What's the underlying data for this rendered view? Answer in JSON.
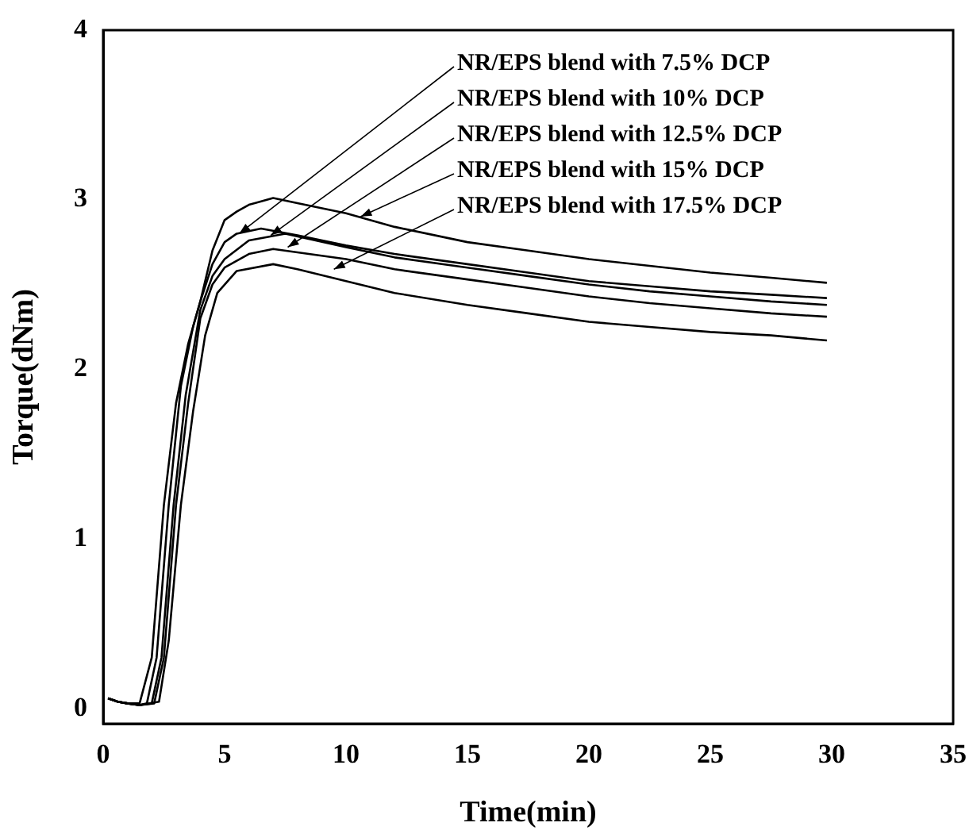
{
  "chart_data": {
    "type": "line",
    "xlabel": "Time(min)",
    "ylabel": "Torque(dNm)",
    "xlim": [
      0,
      35
    ],
    "xticks": [
      0,
      5,
      10,
      15,
      20,
      25,
      30,
      35
    ],
    "ylim": [
      -0.09,
      4
    ],
    "yticks": [
      0,
      1,
      2,
      3,
      4
    ],
    "grid": false,
    "legend": false,
    "marker": "none",
    "line_style": "solid",
    "series": [
      {
        "color": "#000000",
        "x": [
          0.2,
          0.6,
          1,
          1.5,
          1.8,
          2.2,
          2.7,
          3.2,
          3.7,
          4,
          4.5,
          5,
          5.5,
          6.5,
          8,
          10,
          12,
          15,
          17.5,
          20,
          22.5,
          25,
          27.5,
          29.8
        ],
        "values": [
          0.06,
          0.04,
          0.03,
          0.02,
          0.03,
          0.3,
          1.2,
          1.9,
          2.25,
          2.4,
          2.62,
          2.75,
          2.8,
          2.83,
          2.79,
          2.73,
          2.68,
          2.62,
          2.57,
          2.52,
          2.49,
          2.46,
          2.44,
          2.42
        ]
      },
      {
        "color": "#000000",
        "x": [
          0.2,
          0.6,
          1,
          1.5,
          2,
          2.4,
          2.9,
          3.4,
          4,
          4.5,
          5,
          6,
          7.5,
          10,
          12,
          15,
          17.5,
          20,
          22.5,
          25,
          27.5,
          29.8
        ],
        "values": [
          0.06,
          0.04,
          0.03,
          0.02,
          0.03,
          0.3,
          1.2,
          1.85,
          2.35,
          2.55,
          2.65,
          2.76,
          2.8,
          2.72,
          2.66,
          2.6,
          2.55,
          2.5,
          2.46,
          2.43,
          2.4,
          2.38
        ]
      },
      {
        "color": "#000000",
        "x": [
          0.2,
          0.6,
          1,
          1.5,
          2.1,
          2.5,
          3,
          3.5,
          4,
          4.5,
          5,
          6,
          7,
          10,
          12,
          15,
          17.5,
          20,
          22.5,
          25,
          27.5,
          29.8
        ],
        "values": [
          0.06,
          0.04,
          0.03,
          0.02,
          0.03,
          0.3,
          1.2,
          1.8,
          2.3,
          2.5,
          2.6,
          2.68,
          2.71,
          2.65,
          2.59,
          2.53,
          2.48,
          2.43,
          2.39,
          2.36,
          2.33,
          2.31
        ]
      },
      {
        "color": "#000000",
        "x": [
          0.2,
          0.6,
          1,
          1.5,
          2,
          2.5,
          3,
          3.5,
          4,
          4.5,
          5,
          5.5,
          6,
          7,
          8,
          10,
          12,
          15,
          17.5,
          20,
          22.5,
          25,
          27.5,
          29.8
        ],
        "values": [
          0.06,
          0.04,
          0.03,
          0.03,
          0.3,
          1.2,
          1.8,
          2.15,
          2.4,
          2.7,
          2.88,
          2.93,
          2.97,
          3.01,
          2.98,
          2.92,
          2.84,
          2.75,
          2.7,
          2.65,
          2.61,
          2.57,
          2.54,
          2.51
        ]
      },
      {
        "color": "#000000",
        "x": [
          0.2,
          0.6,
          1,
          1.5,
          2.3,
          2.7,
          3.2,
          3.7,
          4.2,
          4.7,
          5.5,
          7,
          8,
          10,
          12,
          15,
          17.5,
          20,
          22.5,
          25,
          27.5,
          29.8
        ],
        "values": [
          0.06,
          0.04,
          0.03,
          0.02,
          0.04,
          0.4,
          1.2,
          1.75,
          2.2,
          2.45,
          2.58,
          2.62,
          2.59,
          2.52,
          2.45,
          2.38,
          2.33,
          2.28,
          2.25,
          2.22,
          2.2,
          2.17
        ]
      }
    ],
    "annotations": [
      {
        "text": "NR/EPS blend with 7.5% DCP",
        "x": 5.6,
        "y": 2.8
      },
      {
        "text": "NR/EPS blend with 10% DCP",
        "x": 6.9,
        "y": 2.79
      },
      {
        "text": "NR/EPS blend with 12.5% DCP",
        "x": 7.6,
        "y": 2.72
      },
      {
        "text": "NR/EPS blend with 15% DCP",
        "x": 10.6,
        "y": 2.9
      },
      {
        "text": "NR/EPS blend with 17.5% DCP",
        "x": 9.5,
        "y": 2.59
      }
    ]
  }
}
